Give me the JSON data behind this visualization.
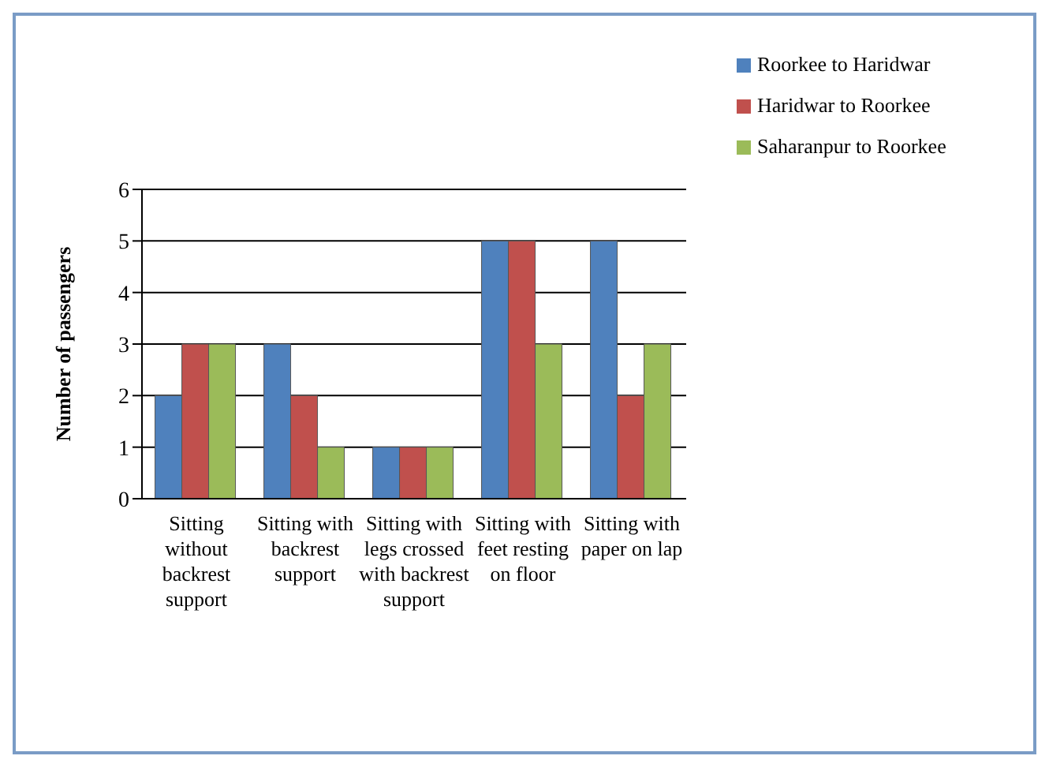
{
  "chart_data": {
    "type": "bar",
    "ylabel": "Number  of passengers",
    "categories": [
      "Sitting without backrest support",
      "Sitting with backrest support",
      "Sitting with legs crossed with backrest support",
      "Sitting with feet resting on floor",
      "Sitting with paper on lap"
    ],
    "series": [
      {
        "name": "Roorkee to Haridwar",
        "color": "#4f81bd",
        "values": [
          2,
          3,
          1,
          5,
          5
        ]
      },
      {
        "name": "Haridwar to Roorkee",
        "color": "#c0504d",
        "values": [
          3,
          2,
          1,
          5,
          2
        ]
      },
      {
        "name": "Saharanpur to Roorkee",
        "color": "#9bbb59",
        "values": [
          3,
          1,
          1,
          3,
          3
        ]
      }
    ],
    "ylim": [
      0,
      6
    ],
    "yticks": [
      0,
      1,
      2,
      3,
      4,
      5,
      6
    ],
    "grid": "y",
    "legend": "top right"
  }
}
